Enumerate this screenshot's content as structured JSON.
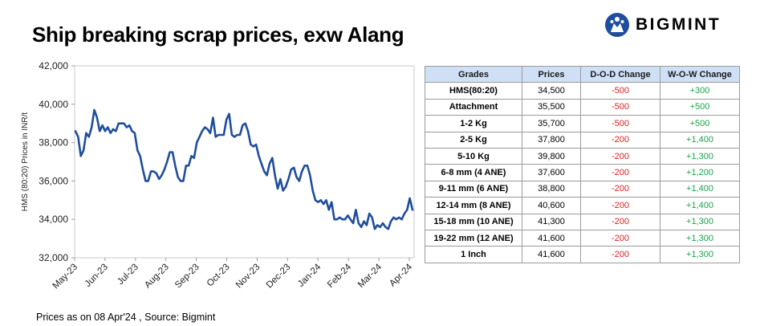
{
  "title": "Ship breaking scrap prices, exw Alang",
  "brand": {
    "name": "BIGMINT",
    "color": "#1f4e9c"
  },
  "footer": "Prices as on 08 Apr'24 , Source: Bigmint",
  "chart_data": {
    "type": "line",
    "ylabel": "HMS (80:20) Prices in INR/t",
    "ylim": [
      32000,
      42000
    ],
    "yticks": [
      "32,000",
      "34,000",
      "36,000",
      "38,000",
      "40,000",
      "42,000"
    ],
    "xticks": [
      "May-23",
      "Jun-23",
      "Jul-23",
      "Aug-23",
      "Sep-23",
      "Oct-23",
      "Nov-23",
      "Dec-23",
      "Jan-24",
      "Feb-24",
      "Mar-24",
      "Apr-24"
    ],
    "line_color": "#1f4e9c",
    "series": [
      {
        "values": [
          38600,
          38300,
          37300,
          37600,
          38500,
          38300,
          38800,
          39700,
          39300,
          38600,
          38900,
          38600,
          38800,
          38500,
          38700,
          38600,
          39000,
          39000,
          39000,
          38800,
          38900,
          38600,
          38500,
          37600,
          37300,
          36600,
          36000,
          36000,
          36500,
          36500,
          36400,
          36100,
          36300,
          36600,
          37000,
          37500,
          37500,
          36800,
          36200,
          36000,
          36000,
          36800,
          36800,
          37300,
          37200,
          38000,
          38300,
          38600,
          38800,
          38700,
          38500,
          39300,
          38300,
          38400,
          38400,
          38400,
          39200,
          39500,
          38400,
          38300,
          38400,
          38400,
          38900,
          39000,
          38600,
          37900,
          37800,
          37900,
          37300,
          36900,
          36500,
          36300,
          36900,
          37200,
          36300,
          35600,
          36100,
          35500,
          35700,
          36100,
          36600,
          36700,
          36200,
          36000,
          36500,
          36800,
          36800,
          36300,
          35500,
          35000,
          34900,
          35000,
          34800,
          35000,
          34500,
          34900,
          34000,
          34000,
          34100,
          34000,
          34000,
          34200,
          34000,
          33800,
          34500,
          33800,
          33600,
          33900,
          33700,
          34300,
          34100,
          33500,
          33700,
          33600,
          33800,
          33600,
          33500,
          33900,
          34100,
          34000,
          34100,
          34000,
          34300,
          34500,
          35100,
          34500
        ]
      }
    ]
  },
  "table": {
    "headers": [
      "Grades",
      "Prices",
      "D-O-D Change",
      "W-O-W Change"
    ],
    "rows": [
      {
        "grade": "HMS(80:20)",
        "price": "34,500",
        "dod": "-500",
        "wow": "+300"
      },
      {
        "grade": "Attachment",
        "price": "35,500",
        "dod": "-500",
        "wow": "+500"
      },
      {
        "grade": "1-2 Kg",
        "price": "35,700",
        "dod": "-500",
        "wow": "+500"
      },
      {
        "grade": "2-5 Kg",
        "price": "37,800",
        "dod": "-200",
        "wow": "+1,400"
      },
      {
        "grade": "5-10 Kg",
        "price": "39,800",
        "dod": "-200",
        "wow": "+1,300"
      },
      {
        "grade": "6-8 mm (4 ANE)",
        "price": "37,600",
        "dod": "-200",
        "wow": "+1,200"
      },
      {
        "grade": "9-11 mm (6 ANE)",
        "price": "38,800",
        "dod": "-200",
        "wow": "+1,400"
      },
      {
        "grade": "12-14 mm (8 ANE)",
        "price": "40,600",
        "dod": "-200",
        "wow": "+1,400"
      },
      {
        "grade": "15-18 mm (10 ANE)",
        "price": "41,300",
        "dod": "-200",
        "wow": "+1,300"
      },
      {
        "grade": "19-22 mm (12 ANE)",
        "price": "41,600",
        "dod": "-200",
        "wow": "+1,300"
      },
      {
        "grade": "1 Inch",
        "price": "41,600",
        "dod": "-200",
        "wow": "+1,300"
      }
    ]
  }
}
